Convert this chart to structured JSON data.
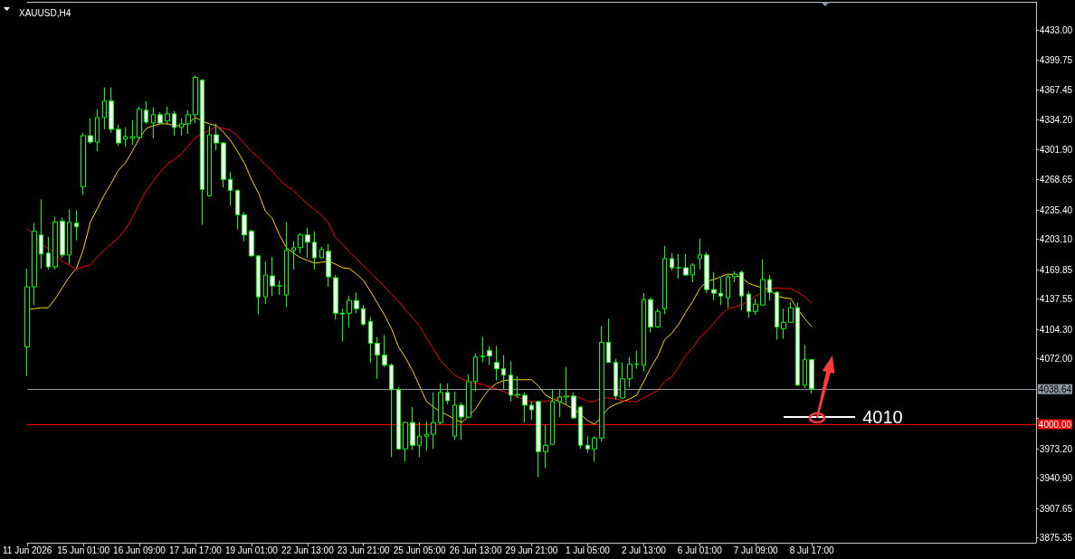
{
  "chart_data": {
    "type": "candlestick",
    "title": "XAUUSD,H4",
    "categories": [
      "11 Jun 2026",
      null,
      null,
      null,
      null,
      null,
      null,
      null,
      "15 Jun 01:00",
      null,
      null,
      null,
      null,
      null,
      null,
      null,
      "16 Jun 09:00",
      null,
      null,
      null,
      null,
      null,
      null,
      null,
      "17 Jun 17:00",
      null,
      null,
      null,
      null,
      null,
      null,
      null,
      "19 Jun 01:00",
      null,
      null,
      null,
      null,
      null,
      null,
      null,
      "22 Jun 13:00",
      null,
      null,
      null,
      null,
      null,
      null,
      null,
      "23 Jun 21:00",
      null,
      null,
      null,
      null,
      null,
      null,
      null,
      "25 Jun 05:00",
      null,
      null,
      null,
      null,
      null,
      null,
      null,
      "26 Jun 13:00",
      null,
      null,
      null,
      null,
      null,
      null,
      null,
      "29 Jun 21:00",
      null,
      null,
      null,
      null,
      null,
      null,
      null,
      "1 Jul 05:00",
      null,
      null,
      null,
      null,
      null,
      null,
      null,
      "2 Jul 13:00",
      null,
      null,
      null,
      null,
      null,
      null,
      null,
      "6 Jul 01:00",
      null,
      null,
      null,
      null,
      null,
      null,
      null,
      "7 Jul 09:00",
      null,
      null,
      null,
      null,
      null,
      null,
      null,
      "8 Jul 17:00",
      null,
      null,
      null,
      null,
      null,
      null,
      null,
      null,
      null,
      null,
      null,
      null,
      null,
      null,
      null,
      null,
      null,
      null,
      null,
      null,
      null,
      null,
      null,
      null,
      null,
      null,
      null,
      null,
      null,
      null,
      null,
      null
    ],
    "ohlc": [
      [
        4085,
        4171,
        4053,
        4151
      ],
      [
        4151,
        4221,
        4131,
        4212
      ],
      [
        4208,
        4247,
        4171,
        4187
      ],
      [
        4188,
        4206,
        4170,
        4173
      ],
      [
        4173,
        4228,
        4170,
        4222
      ],
      [
        4223,
        4227,
        4183,
        4186
      ],
      [
        4186,
        4236,
        4176,
        4222
      ],
      [
        4221,
        4235,
        4202,
        4217
      ],
      [
        4261,
        4320,
        4252,
        4317
      ],
      [
        4317,
        4336,
        4308,
        4310
      ],
      [
        4310,
        4346,
        4300,
        4337
      ],
      [
        4337,
        4370,
        4324,
        4355
      ],
      [
        4355,
        4370,
        4320,
        4324
      ],
      [
        4324,
        4329,
        4306,
        4309
      ],
      [
        4313,
        4326,
        4305,
        4316
      ],
      [
        4314,
        4334,
        4307,
        4316
      ],
      [
        4315,
        4349,
        4314,
        4346
      ],
      [
        4345,
        4355,
        4330,
        4332
      ],
      [
        4331,
        4348,
        4314,
        4340
      ],
      [
        4340,
        4343,
        4329,
        4331
      ],
      [
        4333,
        4349,
        4329,
        4341
      ],
      [
        4341,
        4344,
        4317,
        4326
      ],
      [
        4326,
        4336,
        4317,
        4330
      ],
      [
        4330,
        4345,
        4319,
        4340
      ],
      [
        4340,
        4383,
        4331,
        4381
      ],
      [
        4378,
        4379,
        4219,
        4258
      ],
      [
        4251,
        4328,
        4250,
        4318
      ],
      [
        4318,
        4330,
        4301,
        4309
      ],
      [
        4309,
        4310,
        4260,
        4269
      ],
      [
        4269,
        4277,
        4240,
        4257
      ],
      [
        4257,
        4258,
        4214,
        4230
      ],
      [
        4230,
        4233,
        4201,
        4208
      ],
      [
        4212,
        4214,
        4184,
        4185
      ],
      [
        4185,
        4186,
        4121,
        4140
      ],
      [
        4140,
        4179,
        4132,
        4164
      ],
      [
        4163,
        4184,
        4141,
        4152
      ],
      [
        4152,
        4158,
        4142,
        4152
      ],
      [
        4142,
        4222,
        4129,
        4191
      ],
      [
        4191,
        4201,
        4170,
        4194
      ],
      [
        4194,
        4210,
        4188,
        4208
      ],
      [
        4208,
        4216,
        4183,
        4200
      ],
      [
        4200,
        4212,
        4170,
        4183
      ],
      [
        4183,
        4195,
        4182,
        4192
      ],
      [
        4190,
        4198,
        4151,
        4162
      ],
      [
        4161,
        4164,
        4115,
        4122
      ],
      [
        4122,
        4127,
        4091,
        4121
      ],
      [
        4122,
        4141,
        4106,
        4136
      ],
      [
        4136,
        4145,
        4122,
        4127
      ],
      [
        4127,
        4131,
        4108,
        4110
      ],
      [
        4113,
        4118,
        4068,
        4089
      ],
      [
        4089,
        4096,
        4050,
        4076
      ],
      [
        4076,
        4098,
        4063,
        4065
      ],
      [
        4065,
        4067,
        3964,
        4038
      ],
      [
        4038,
        4041,
        3972,
        3973
      ],
      [
        3973,
        4003,
        3959,
        4002
      ],
      [
        4002,
        4019,
        3972,
        3977
      ],
      [
        3977,
        4002,
        3964,
        3987
      ],
      [
        3987,
        4003,
        3971,
        3989
      ],
      [
        3989,
        4035,
        3973,
        4002
      ],
      [
        4002,
        4045,
        4000,
        4035
      ],
      [
        4035,
        4045,
        4022,
        4026
      ],
      [
        3987,
        4036,
        3983,
        4021
      ],
      [
        4021,
        4024,
        3983,
        4008
      ],
      [
        4008,
        4055,
        4007,
        4047
      ],
      [
        4047,
        4078,
        4036,
        4074
      ],
      [
        4074,
        4096,
        4068,
        4075
      ],
      [
        4081,
        4086,
        4065,
        4075
      ],
      [
        4068,
        4086,
        4048,
        4061
      ],
      [
        4061,
        4076,
        4039,
        4054
      ],
      [
        4054,
        4069,
        4025,
        4032
      ],
      [
        4032,
        4053,
        4029,
        4033
      ],
      [
        4032,
        4035,
        4002,
        4021
      ],
      [
        4021,
        4025,
        4005,
        4016
      ],
      [
        4025,
        4026,
        3942,
        3970
      ],
      [
        3970,
        3999,
        3952,
        3977
      ],
      [
        3978,
        4038,
        3978,
        4025
      ],
      [
        4025,
        4038,
        4008,
        4030
      ],
      [
        4030,
        4063,
        4022,
        4031
      ],
      [
        4031,
        4035,
        4006,
        4007
      ],
      [
        4019,
        4020,
        3973,
        3977
      ],
      [
        3977,
        3987,
        3969,
        3973
      ],
      [
        3973,
        3987,
        3959,
        3985
      ],
      [
        3985,
        4108,
        3981,
        4090
      ],
      [
        4090,
        4116,
        4068,
        4068
      ],
      [
        4068,
        4072,
        4027,
        4031
      ],
      [
        4029,
        4068,
        4028,
        4050
      ],
      [
        4050,
        4074,
        4041,
        4066
      ],
      [
        4066,
        4081,
        4061,
        4066
      ],
      [
        4065,
        4144,
        4058,
        4137
      ],
      [
        4137,
        4139,
        4101,
        4107
      ],
      [
        4107,
        4127,
        4106,
        4124
      ],
      [
        4127,
        4196,
        4121,
        4182
      ],
      [
        4182,
        4188,
        4169,
        4172
      ],
      [
        4172,
        4187,
        4160,
        4172
      ],
      [
        4172,
        4187,
        4163,
        4164
      ],
      [
        4164,
        4177,
        4156,
        4175
      ],
      [
        4182,
        4204,
        4170,
        4186
      ],
      [
        4186,
        4189,
        4144,
        4148
      ],
      [
        4148,
        4167,
        4136,
        4144
      ],
      [
        4144,
        4161,
        4131,
        4141
      ],
      [
        4139,
        4164,
        4128,
        4162
      ],
      [
        4162,
        4168,
        4156,
        4165
      ],
      [
        4167,
        4169,
        4125,
        4141
      ],
      [
        4143,
        4146,
        4117,
        4124
      ],
      [
        4124,
        4138,
        4120,
        4132
      ],
      [
        4131,
        4181,
        4131,
        4159
      ],
      [
        4159,
        4164,
        4136,
        4145
      ],
      [
        4145,
        4146,
        4093,
        4107
      ],
      [
        4105,
        4127,
        4094,
        4112
      ],
      [
        4112,
        4134,
        4112,
        4128
      ],
      [
        4128,
        4134,
        4042,
        4043
      ],
      [
        4043,
        4087,
        4040,
        4071
      ],
      [
        4071,
        4071,
        4034,
        4039
      ],
      null,
      null,
      null,
      null,
      null,
      null,
      null,
      null,
      null,
      null,
      null,
      null,
      null,
      null,
      null,
      null,
      null,
      null,
      null,
      null,
      null,
      null,
      null,
      null,
      null,
      null,
      null,
      null,
      null,
      null,
      null,
      null
    ],
    "color": "#00ff00",
    "series": [
      {
        "type": "line",
        "color": "#ffd700",
        "values": [
          4126,
          4127,
          4128,
          4128,
          4138,
          4150,
          4162,
          4171,
          4192,
          4222,
          4237,
          4252,
          4265,
          4279,
          4287,
          4300,
          4314,
          4325,
          4328,
          4330,
          4330,
          4328,
          4328,
          4331,
          4337,
          4333,
          4330,
          4328,
          4321,
          4312,
          4300,
          4287,
          4269,
          4254,
          4234,
          4226,
          4208,
          4194,
          4188,
          4183,
          4180,
          4177,
          4178,
          4179,
          4176,
          4172,
          4171,
          4165,
          4158,
          4146,
          4133,
          4120,
          4105,
          4085,
          4073,
          4059,
          4042,
          4025,
          4019,
          4014,
          4010,
          4006,
          4002,
          4009,
          4017,
          4029,
          4039,
          4045,
          4048,
          4049,
          4049,
          4049,
          4049,
          4042,
          4032,
          4028,
          4025,
          4021,
          4017,
          4011,
          4004,
          4000,
          4009,
          4018,
          4022,
          4025,
          4028,
          4032,
          4047,
          4062,
          4075,
          4093,
          4100,
          4110,
          4123,
          4135,
          4149,
          4157,
          4159,
          4162,
          4165,
          4164,
          4161,
          4155,
          4152,
          4150,
          4148,
          4141,
          4139,
          4138,
          4126,
          4116,
          4107,
          null,
          null,
          null,
          null,
          null,
          null,
          null,
          null,
          null,
          null,
          null,
          null,
          null,
          null,
          null,
          null,
          null,
          null,
          null,
          null,
          null,
          null,
          null,
          null,
          null,
          null,
          null,
          null,
          null,
          null,
          null,
          null
        ]
      },
      {
        "type": "line",
        "color": "#ff0000",
        "values": [
          4215,
          4208,
          4198,
          4193,
          4188,
          4179,
          4175,
          4170,
          4173,
          4175,
          4184,
          4191,
          4198,
          4205,
          4214,
          4227,
          4242,
          4257,
          4267,
          4277,
          4286,
          4291,
          4297,
          4306,
          4315,
          4319,
          4323,
          4327,
          4325,
          4323,
          4317,
          4308,
          4300,
          4293,
          4285,
          4278,
          4269,
          4262,
          4257,
          4249,
          4242,
          4236,
          4230,
          4221,
          4205,
          4198,
          4189,
          4182,
          4174,
          4166,
          4159,
          4151,
          4143,
          4135,
          4126,
          4117,
          4108,
          4095,
          4083,
          4070,
          4062,
          4054,
          4050,
          4047,
          4045,
          4044,
          4041,
          4039,
          4036,
          4033,
          4030,
          4027,
          4025,
          4025,
          4025,
          4027,
          4030,
          4031,
          4031,
          4029,
          4025,
          4025,
          4029,
          4029,
          4028,
          4026,
          4025,
          4025,
          4029,
          4033,
          4037,
          4047,
          4052,
          4063,
          4076,
          4084,
          4095,
          4102,
          4111,
          4120,
          4127,
          4129,
          4131,
          4136,
          4141,
          4145,
          4148,
          4150,
          4149,
          4149,
          4145,
          4140,
          4133,
          null,
          null,
          null,
          null,
          null,
          null,
          null,
          null,
          null,
          null,
          null,
          null,
          null,
          null,
          null,
          null,
          null,
          null,
          null,
          null,
          null,
          null,
          null,
          null,
          null,
          null,
          null,
          null,
          null,
          null,
          null,
          null
        ]
      }
    ],
    "ylim": [
      3870,
      4464
    ],
    "yticks": [
      {
        "value": 4433,
        "label": "4433.00"
      },
      {
        "value": 4399.75,
        "label": "4399.75"
      },
      {
        "value": 4367.45,
        "label": "4367.45"
      },
      {
        "value": 4334.2,
        "label": "4334.20"
      },
      {
        "value": 4301.9,
        "label": "4301.90"
      },
      {
        "value": 4268.65,
        "label": "4268.65"
      },
      {
        "value": 4235.4,
        "label": "4235.40"
      },
      {
        "value": 4203.1,
        "label": "4203.10"
      },
      {
        "value": 4169.85,
        "label": "4169.85"
      },
      {
        "value": 4137.55,
        "label": "4137.55"
      },
      {
        "value": 4104.3,
        "label": "4104.30"
      },
      {
        "value": 4072,
        "label": "4072.00"
      },
      {
        "value": 4006.45,
        "label": null
      },
      {
        "value": 3973.2,
        "label": "3973.20"
      },
      {
        "value": 3940.9,
        "label": "3940.90"
      },
      {
        "value": 3907.65,
        "label": "3907.65"
      },
      {
        "value": 3875.35,
        "label": "3875.35"
      }
    ],
    "ref_lines": [
      {
        "axis": "y",
        "value": 4038.64,
        "label": "4038.64",
        "color": "#8c96a0"
      },
      {
        "axis": "y",
        "value": 4000,
        "label": "4000.00",
        "color": "#ff0000"
      }
    ],
    "annotations": [
      "4010"
    ]
  }
}
